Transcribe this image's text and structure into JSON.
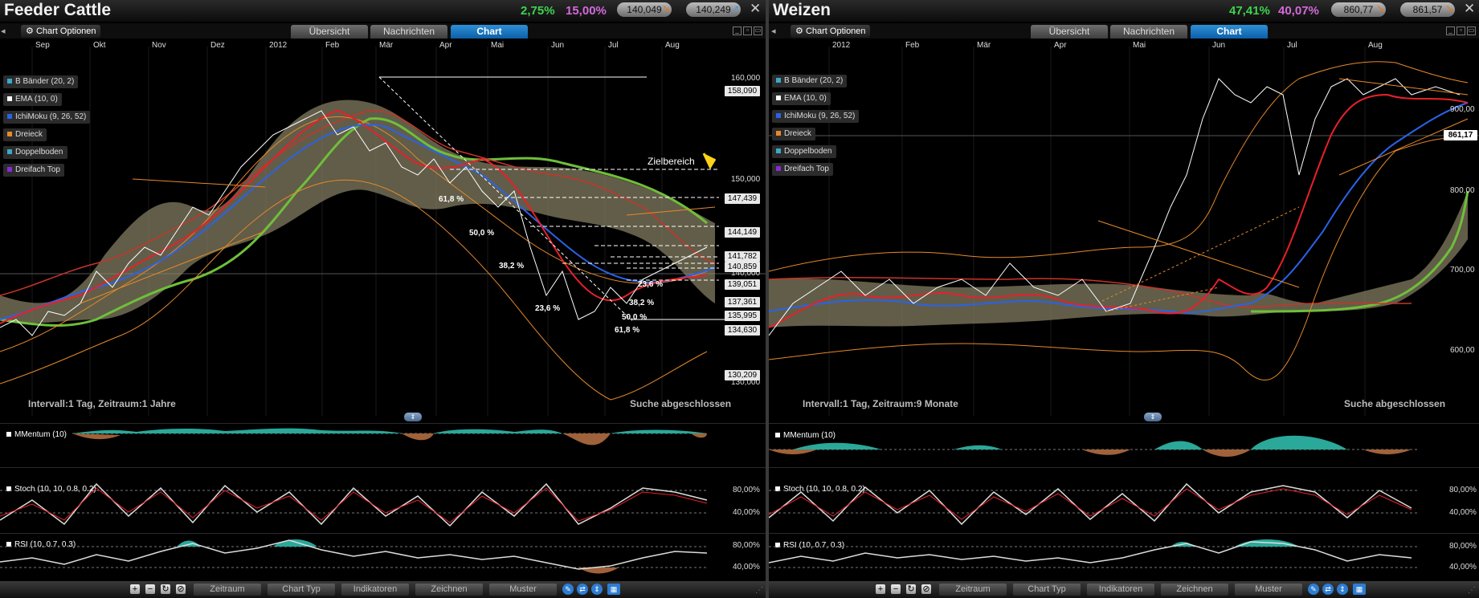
{
  "panels": [
    {
      "title": "Feeder Cattle",
      "pct1": "2,75%",
      "pct2": "15,00%",
      "bid": "140,049",
      "ask": "140,249",
      "chart_options": "Chart Optionen",
      "tabs": [
        "Übersicht",
        "Nachrichten",
        "Chart"
      ],
      "months": [
        "Sep",
        "Okt",
        "Nov",
        "Dez",
        "2012",
        "Feb",
        "Mär",
        "Apr",
        "Mai",
        "Jun",
        "Jul",
        "Aug"
      ],
      "legend": [
        "B Bänder (20, 2)",
        "EMA (10, 0)",
        "IchiMoku (9, 26, 52)",
        "Dreieck",
        "Doppelboden",
        "Dreifach Top"
      ],
      "y_labels": [
        "160,000",
        "150,000",
        "140,000",
        "130,000"
      ],
      "price_tags": [
        "158,090",
        "147,439",
        "144,149",
        "141,782",
        "140,859",
        "139,051",
        "137,361",
        "135,995",
        "134,630",
        "130,209"
      ],
      "fib_labels": [
        "61,8 %",
        "50,0 %",
        "38,2 %",
        "23,6 %",
        "23,6 %",
        "38,2 %",
        "50,0 %",
        "61,8 %"
      ],
      "target_label": "Zielbereich",
      "interval": "Intervall:1 Tag, Zeitraum:1 Jahre",
      "search_status": "Suche abgeschlossen",
      "sub_charts": [
        "MMentum (10)",
        "Stoch (10, 10, 0.8, 0.2)",
        "RSI (10, 0.7, 0.3)"
      ],
      "stoch_levels": [
        "80,00%",
        "40,00%"
      ],
      "rsi_levels": [
        "80,00%",
        "40,00%"
      ],
      "bottom_menu": [
        "Zeitraum",
        "Chart Typ",
        "Indikatoren",
        "Zeichnen",
        "Muster"
      ]
    },
    {
      "title": "Weizen",
      "pct1": "47,41%",
      "pct2": "40,07%",
      "bid": "860,77",
      "ask": "861,57",
      "chart_options": "Chart Optionen",
      "tabs": [
        "Übersicht",
        "Nachrichten",
        "Chart"
      ],
      "months": [
        "2012",
        "Feb",
        "Mär",
        "Apr",
        "Mai",
        "Jun",
        "Jul",
        "Aug"
      ],
      "legend": [
        "B Bänder (20, 2)",
        "EMA (10, 0)",
        "IchiMoku (9, 26, 52)",
        "Dreieck",
        "Doppelboden",
        "Dreifach Top"
      ],
      "y_labels": [
        "900,00",
        "800,00",
        "700,00",
        "600,00"
      ],
      "current_price": "861,17",
      "interval": "Intervall:1 Tag, Zeitraum:9 Monate",
      "search_status": "Suche abgeschlossen",
      "sub_charts": [
        "MMentum (10)",
        "Stoch (10, 10, 0.8, 0.2)",
        "RSI (10, 0.7, 0.3)"
      ],
      "stoch_levels": [
        "80,00%",
        "40,00%"
      ],
      "rsi_levels": [
        "80,00%",
        "40,00%"
      ],
      "bottom_menu": [
        "Zeitraum",
        "Chart Typ",
        "Indikatoren",
        "Zeichnen",
        "Muster"
      ]
    }
  ],
  "colors": {
    "up": "#3dd34f",
    "pink": "#d36ad9",
    "active_tab": "#1a78c2",
    "bollinger": "#e6892a",
    "ema": "#e8202a",
    "ichimoku": "#2a62e8",
    "cloud_green": "#6fbf3a",
    "cloud_brown": "#8a8466",
    "momentum_up": "#2aa89a",
    "momentum_down": "#a0623a"
  },
  "icons": [
    "gear-icon",
    "zoom-in-icon",
    "zoom-out-icon",
    "refresh-icon",
    "cancel-icon",
    "pencil-icon",
    "arrows-icon",
    "table-icon",
    "close-icon"
  ]
}
